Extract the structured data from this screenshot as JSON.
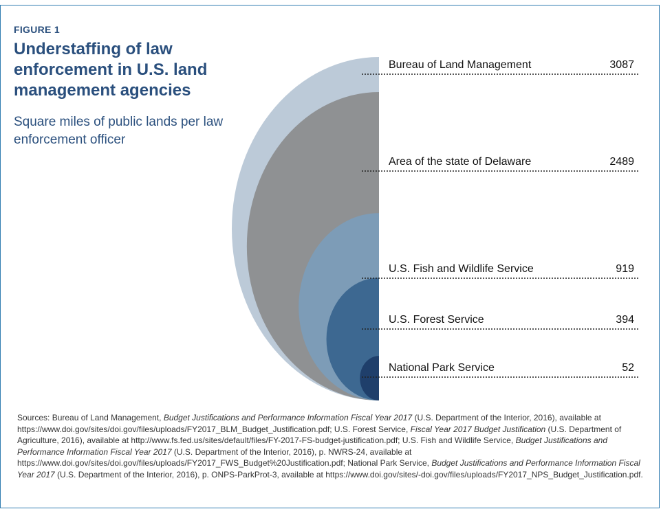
{
  "figure_label": "FIGURE 1",
  "title": "Understaffing of law enforcement in U.S. land management agencies",
  "subtitle": "Square miles of public lands per law enforcement officer",
  "chart_data": {
    "type": "area",
    "title": "Understaffing of law enforcement in U.S. land management agencies",
    "subtitle": "Square miles of public lands per law enforcement officer",
    "categories": [
      "Bureau of Land Management",
      "Area of the state of Delaware",
      "U.S. Fish and Wildlife Service",
      "U.S. Forest Service",
      "National Park Service"
    ],
    "values": [
      3087,
      2489,
      919,
      394,
      52
    ],
    "colors": [
      "#bccad8",
      "#8f9193",
      "#7d9cb7",
      "#3d6891",
      "#1f3f6b"
    ],
    "label_strings": [
      "3087",
      "2489",
      "919",
      "394",
      "52"
    ]
  },
  "sources": [
    {
      "t": "Sources: Bureau of Land Management, ",
      "i": false
    },
    {
      "t": "Budget Justifications and Performance Information Fiscal Year 2017",
      "i": true
    },
    {
      "t": " (U.S. Department of the Interior, 2016), available at https://www.doi.gov/sites/doi.gov/files/uploads/FY2017_BLM_Budget_Justification.pdf; U.S. Forest Service, ",
      "i": false
    },
    {
      "t": "Fiscal Year 2017 Budget Justification",
      "i": true
    },
    {
      "t": " (U.S. Department of Agriculture, 2016), available at http://www.fs.fed.us/sites/default/files/FY-2017-FS-budget-justification.pdf; U.S. Fish and Wildlife Service, ",
      "i": false
    },
    {
      "t": "Budget Justifications and Performance Information Fiscal Year 2017",
      "i": true
    },
    {
      "t": " (U.S. Department of the Interior, 2016), p. NWRS-24, available at https://www.doi.gov/sites/doi.gov/files/uploads/FY2017_FWS_Budget%20Justification.pdf; National Park Service, ",
      "i": false
    },
    {
      "t": "Budget Justifications and Performance Information Fiscal Year 2017",
      "i": true
    },
    {
      "t": " (U.S. Department of the Interior, 2016), p. ONPS-ParkProt-3, available at https://www.doi.gov/sites/-doi.gov/files/uploads/FY2017_NPS_Budget_Justification.pdf.",
      "i": false
    }
  ]
}
